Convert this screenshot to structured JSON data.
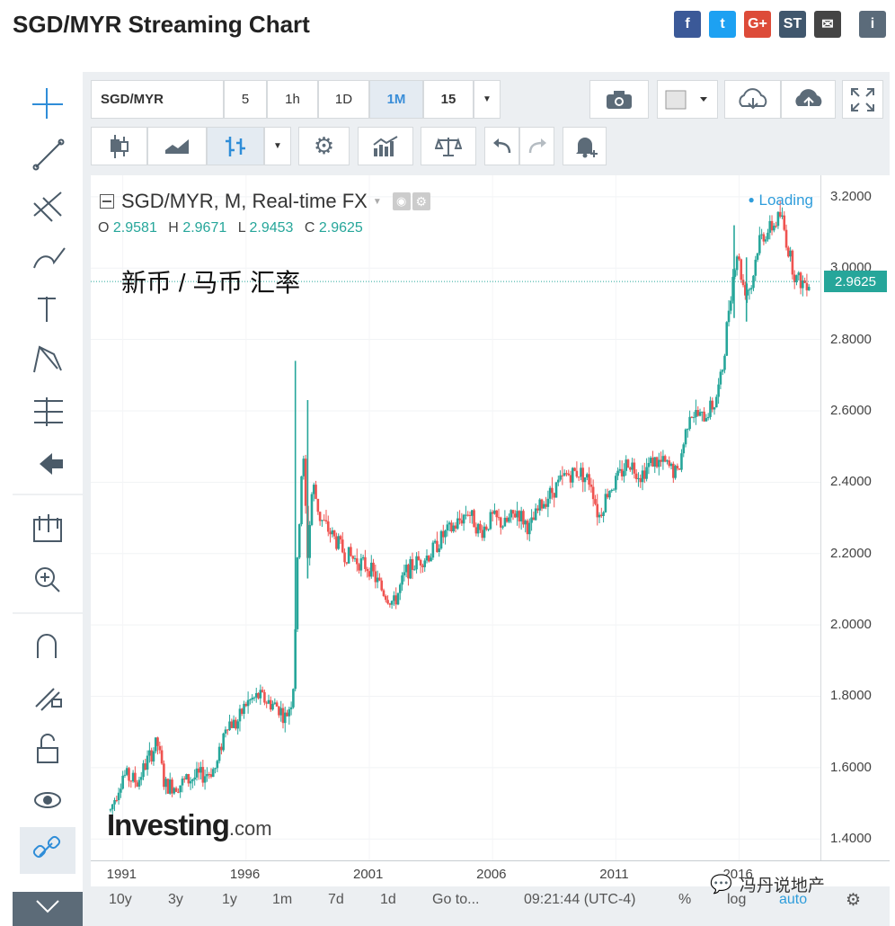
{
  "page": {
    "title": "SGD/MYR Streaming Chart"
  },
  "share": [
    {
      "name": "facebook-icon",
      "label": "f",
      "color": "#3b5998"
    },
    {
      "name": "twitter-icon",
      "label": "t",
      "color": "#1da1f2"
    },
    {
      "name": "googleplus-icon",
      "label": "G+",
      "color": "#dd4b39"
    },
    {
      "name": "stocktwits-icon",
      "label": "ST",
      "color": "#40576d"
    },
    {
      "name": "email-icon",
      "label": "✉",
      "color": "#444"
    },
    {
      "name": "info-icon",
      "label": "i",
      "color": "#5b6b7a"
    }
  ],
  "toolbar": {
    "symbol": "SGD/MYR",
    "intervals": [
      "5",
      "1h",
      "1D",
      "1M",
      "15"
    ],
    "active_interval": "1M"
  },
  "legend": {
    "title": "SGD/MYR, M, Real-time FX",
    "o_label": "O",
    "o": "2.9581",
    "h_label": "H",
    "h": "2.9671",
    "l_label": "L",
    "l": "2.9453",
    "c_label": "C",
    "c": "2.9625",
    "loading": "Loading"
  },
  "annotation": "新币 / 马币 汇率",
  "watermark": {
    "brand": "Investing",
    "suffix": ".com"
  },
  "wechat_watermark": "冯丹说地产",
  "bottom_bar": {
    "ranges": [
      "10y",
      "3y",
      "1y",
      "1m",
      "7d",
      "1d"
    ],
    "goto": "Go to...",
    "time": "09:21:44 (UTC-4)",
    "percent": "%",
    "log": "log",
    "auto": "auto"
  },
  "colors": {
    "up": "#26a69a",
    "down": "#ef5350",
    "accent": "#3a8ed8"
  },
  "chart_data": {
    "type": "candlestick",
    "x_unit": "year",
    "y_unit": "SGD/MYR",
    "xticks": [
      1991,
      1996,
      2001,
      2006,
      2011,
      2016
    ],
    "yticks": [
      1.4,
      1.6,
      1.8,
      2.0,
      2.2,
      2.4,
      2.6,
      2.8,
      3.0,
      3.2
    ],
    "ylim": [
      1.34,
      3.26
    ],
    "xlim": [
      1989.7,
      2019.3
    ],
    "last_price": 2.9625,
    "last_price_label": "2.9625",
    "close_path": [
      [
        1990.5,
        1.48
      ],
      [
        1991.0,
        1.58
      ],
      [
        1991.6,
        1.56
      ],
      [
        1992.0,
        1.62
      ],
      [
        1992.4,
        1.67
      ],
      [
        1992.7,
        1.55
      ],
      [
        1993.2,
        1.55
      ],
      [
        1993.8,
        1.57
      ],
      [
        1994.3,
        1.58
      ],
      [
        1994.8,
        1.6
      ],
      [
        1995.2,
        1.73
      ],
      [
        1995.6,
        1.72
      ],
      [
        1996.0,
        1.78
      ],
      [
        1996.5,
        1.8
      ],
      [
        1997.0,
        1.78
      ],
      [
        1997.3,
        1.77
      ],
      [
        1997.6,
        1.74
      ],
      [
        1997.9,
        1.8
      ],
      [
        1998.1,
        2.2
      ],
      [
        1998.3,
        2.5
      ],
      [
        1998.5,
        2.2
      ],
      [
        1998.7,
        2.4
      ],
      [
        1999.0,
        2.3
      ],
      [
        1999.5,
        2.25
      ],
      [
        2000.0,
        2.2
      ],
      [
        2000.5,
        2.18
      ],
      [
        2001.0,
        2.16
      ],
      [
        2001.5,
        2.1
      ],
      [
        2002.0,
        2.06
      ],
      [
        2002.5,
        2.15
      ],
      [
        2003.0,
        2.18
      ],
      [
        2003.5,
        2.2
      ],
      [
        2004.0,
        2.25
      ],
      [
        2004.5,
        2.28
      ],
      [
        2005.0,
        2.32
      ],
      [
        2005.5,
        2.26
      ],
      [
        2006.0,
        2.3
      ],
      [
        2006.5,
        2.28
      ],
      [
        2007.0,
        2.32
      ],
      [
        2007.5,
        2.27
      ],
      [
        2008.0,
        2.34
      ],
      [
        2008.5,
        2.38
      ],
      [
        2009.0,
        2.42
      ],
      [
        2009.5,
        2.43
      ],
      [
        2010.0,
        2.4
      ],
      [
        2010.3,
        2.3
      ],
      [
        2010.7,
        2.38
      ],
      [
        2011.0,
        2.4
      ],
      [
        2011.5,
        2.46
      ],
      [
        2012.0,
        2.42
      ],
      [
        2012.5,
        2.46
      ],
      [
        2013.0,
        2.45
      ],
      [
        2013.5,
        2.42
      ],
      [
        2014.0,
        2.6
      ],
      [
        2014.5,
        2.58
      ],
      [
        2015.0,
        2.62
      ],
      [
        2015.3,
        2.7
      ],
      [
        2015.6,
        2.9
      ],
      [
        2015.9,
        3.05
      ],
      [
        2016.2,
        2.94
      ],
      [
        2016.5,
        2.95
      ],
      [
        2016.8,
        3.08
      ],
      [
        2017.1,
        3.1
      ],
      [
        2017.4,
        3.12
      ],
      [
        2017.7,
        3.15
      ],
      [
        2018.0,
        3.05
      ],
      [
        2018.3,
        2.97
      ],
      [
        2018.6,
        2.96
      ],
      [
        2018.9,
        2.9625
      ]
    ],
    "spikes": [
      {
        "x": 1998.0,
        "high": 2.74,
        "low": 1.98
      },
      {
        "x": 1998.5,
        "high": 2.63,
        "low": 2.13
      },
      {
        "x": 2015.8,
        "high": 3.12,
        "low": 2.86
      },
      {
        "x": 2016.3,
        "high": 3.03,
        "low": 2.85
      }
    ]
  }
}
